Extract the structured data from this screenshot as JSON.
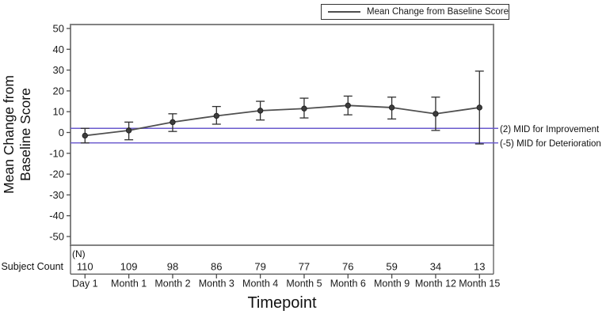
{
  "legend": {
    "label": "Mean Change from Baseline Score"
  },
  "y_axis": {
    "title_line1": "Mean Change from",
    "title_line2": "Baseline Score"
  },
  "x_axis": {
    "title": "Timepoint"
  },
  "subject_count": {
    "row_label": "Subject Count",
    "n_label": "(N)"
  },
  "chart_data": {
    "type": "line",
    "title": "",
    "x": [
      "Day 1",
      "Month 1",
      "Month 2",
      "Month 3",
      "Month 4",
      "Month 5",
      "Month 6",
      "Month 9",
      "Month 12",
      "Month 15"
    ],
    "series": [
      {
        "name": "Mean Change from Baseline Score",
        "values": [
          -1.5,
          1,
          5,
          8,
          10.5,
          11.5,
          13,
          12,
          9,
          12
        ],
        "upper": [
          2,
          5,
          9,
          12.5,
          15,
          16.5,
          17.5,
          17,
          17,
          29.5
        ],
        "lower": [
          -5,
          -3.5,
          0.5,
          4,
          6,
          7,
          8.5,
          6.5,
          1,
          -5.5
        ]
      }
    ],
    "y_ticks": [
      50,
      40,
      30,
      20,
      10,
      0,
      -10,
      -20,
      -30,
      -40,
      -50
    ],
    "ylim": [
      -55,
      53
    ],
    "ylabel": "Mean Change from Baseline Score",
    "xlabel": "Timepoint",
    "grid": false,
    "legend_position": "top-right",
    "ref_lines": [
      {
        "value": 2,
        "label": "(2) MID for Improvement"
      },
      {
        "value": -5,
        "label": "(-5) MID for Deterioration"
      }
    ],
    "subject_counts": [
      110,
      109,
      98,
      86,
      79,
      77,
      76,
      59,
      34,
      13
    ]
  },
  "colors": {
    "series_line": "#4f4f4f",
    "marker": "#3d3d3d",
    "error_bar": "#2f2f2f",
    "ref_line": "#6a5acd",
    "plot_border": "#828282",
    "axis": "#4d4d4d"
  }
}
